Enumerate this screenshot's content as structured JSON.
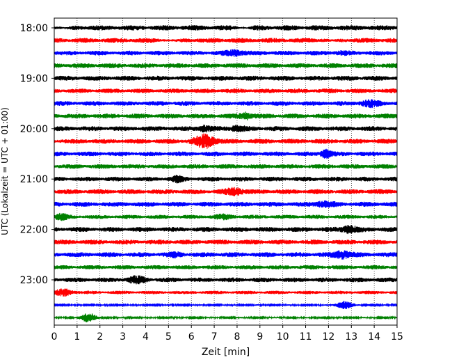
{
  "chart_data": {
    "type": "line",
    "title": "",
    "xlabel": "Zeit  [min]",
    "ylabel": "UTC (Lokalzeit = UTC + 01:00)",
    "xlim": [
      0,
      15
    ],
    "x_ticks": [
      0,
      1,
      2,
      3,
      4,
      5,
      6,
      7,
      8,
      9,
      10,
      11,
      12,
      13,
      14,
      15
    ],
    "y_tick_labels": [
      "18:00",
      "19:00",
      "20:00",
      "21:00",
      "22:00",
      "23:00"
    ],
    "y_tick_rows": [
      0,
      4,
      8,
      12,
      16,
      20
    ],
    "grid": "vertical dotted lines at every minute",
    "legend": "none",
    "line_interval_minutes": 15,
    "colors": [
      "#000000",
      "#ff0000",
      "#0000ff",
      "#008000"
    ],
    "series": [
      {
        "name": "18:00",
        "color": "#000000",
        "base_amplitude": 0.9,
        "events": [
          [
            0.5,
            0.3,
            0.3
          ],
          [
            8.3,
            0.3,
            0.3
          ]
        ]
      },
      {
        "name": "18:15",
        "color": "#ff0000",
        "base_amplitude": 0.85,
        "events": [
          [
            5.2,
            0.35,
            0.4
          ],
          [
            12.2,
            0.3,
            0.4
          ]
        ]
      },
      {
        "name": "18:30",
        "color": "#0000ff",
        "base_amplitude": 0.8,
        "events": [
          [
            7.9,
            0.45,
            1.4
          ],
          [
            12.6,
            0.4,
            1.0
          ]
        ]
      },
      {
        "name": "18:45",
        "color": "#008000",
        "base_amplitude": 0.85,
        "events": []
      },
      {
        "name": "19:00",
        "color": "#000000",
        "base_amplitude": 0.85,
        "events": []
      },
      {
        "name": "19:15",
        "color": "#ff0000",
        "base_amplitude": 0.8,
        "events": []
      },
      {
        "name": "19:30",
        "color": "#0000ff",
        "base_amplitude": 0.8,
        "events": [
          [
            13.8,
            0.4,
            1.6
          ]
        ]
      },
      {
        "name": "19:45",
        "color": "#008000",
        "base_amplitude": 0.85,
        "events": [
          [
            8.4,
            0.3,
            1.5
          ]
        ]
      },
      {
        "name": "20:00",
        "color": "#000000",
        "base_amplitude": 0.85,
        "events": [
          [
            6.6,
            0.3,
            1.5
          ],
          [
            8.0,
            0.35,
            1.4
          ]
        ]
      },
      {
        "name": "20:15",
        "color": "#ff0000",
        "base_amplitude": 0.85,
        "events": [
          [
            6.6,
            0.45,
            2.8
          ]
        ]
      },
      {
        "name": "20:30",
        "color": "#0000ff",
        "base_amplitude": 0.8,
        "events": [
          [
            11.9,
            0.25,
            1.8
          ]
        ]
      },
      {
        "name": "20:45",
        "color": "#008000",
        "base_amplitude": 0.8,
        "events": []
      },
      {
        "name": "21:00",
        "color": "#000000",
        "base_amplitude": 0.8,
        "events": [
          [
            5.4,
            0.25,
            1.5
          ]
        ]
      },
      {
        "name": "21:15",
        "color": "#ff0000",
        "base_amplitude": 0.85,
        "events": [
          [
            7.9,
            0.4,
            1.7
          ]
        ]
      },
      {
        "name": "21:30",
        "color": "#0000ff",
        "base_amplitude": 0.85,
        "events": [
          [
            11.8,
            0.45,
            1.4
          ]
        ]
      },
      {
        "name": "21:45",
        "color": "#008000",
        "base_amplitude": 0.7,
        "events": [
          [
            0.3,
            0.3,
            1.4
          ],
          [
            7.4,
            0.4,
            1.2
          ]
        ]
      },
      {
        "name": "22:00",
        "color": "#000000",
        "base_amplitude": 0.85,
        "events": [
          [
            12.9,
            0.4,
            1.6
          ]
        ]
      },
      {
        "name": "22:15",
        "color": "#ff0000",
        "base_amplitude": 0.85,
        "events": []
      },
      {
        "name": "22:30",
        "color": "#0000ff",
        "base_amplitude": 0.85,
        "events": [
          [
            5.3,
            0.3,
            1.3
          ],
          [
            12.6,
            0.4,
            1.7
          ]
        ]
      },
      {
        "name": "22:45",
        "color": "#008000",
        "base_amplitude": 0.75,
        "events": []
      },
      {
        "name": "23:00",
        "color": "#000000",
        "base_amplitude": 0.8,
        "events": [
          [
            3.6,
            0.35,
            1.7
          ]
        ]
      },
      {
        "name": "23:15",
        "color": "#ff0000",
        "base_amplitude": 0.6,
        "events": [
          [
            0.4,
            0.4,
            1.5
          ]
        ]
      },
      {
        "name": "23:30",
        "color": "#0000ff",
        "base_amplitude": 0.25,
        "events": [
          [
            12.7,
            0.35,
            1.5
          ]
        ]
      },
      {
        "name": "23:45",
        "color": "#008000",
        "base_amplitude": 0.25,
        "events": [
          [
            1.5,
            0.35,
            1.7
          ]
        ]
      }
    ]
  }
}
